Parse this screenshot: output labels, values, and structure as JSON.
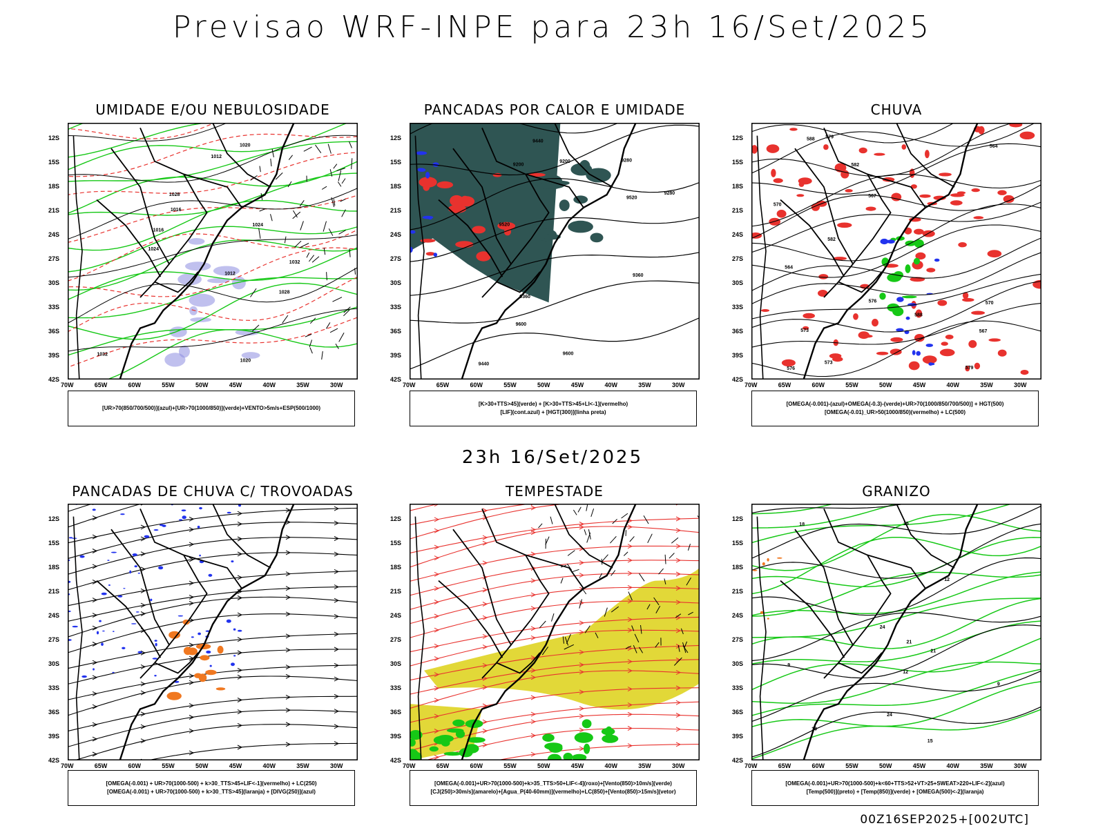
{
  "title": "Previsao WRF-INPE  para 23h 16/Set/2025",
  "middle_date": "23h 16/Set/2025",
  "footer": "00Z16SEP2025+[002UTC]",
  "lat_ticks": [
    "12S",
    "15S",
    "18S",
    "21S",
    "24S",
    "27S",
    "30S",
    "33S",
    "36S",
    "39S",
    "42S"
  ],
  "lon_ticks": [
    "70W",
    "65W",
    "60W",
    "55W",
    "50W",
    "45W",
    "40W",
    "35W",
    "30W"
  ],
  "panels": [
    {
      "title": "UMIDADE E/OU NEBULOSIDADE",
      "legend": [
        "[UR>70(850/700/500)](azul)+[UR>70(1000/850)](verde)+VENTO>5m/s+ESP(500/1000)"
      ],
      "contour_labels": [
        "1012",
        "1016",
        "1020",
        "1024",
        "1028",
        "1032"
      ]
    },
    {
      "title": "PANCADAS POR CALOR E UMIDADE",
      "legend": [
        "[K>30+TTS>45](verde) + [K>30+TTS>45+LI<-1](vermelho)",
        "[LIF](cont.azul) + [HGT(300)](linha preta)"
      ],
      "contour_labels": [
        "9600",
        "9520",
        "9440",
        "9360",
        "9280",
        "9200"
      ]
    },
    {
      "title": "CHUVA",
      "legend": [
        "[OMEGA(-0.001)-(azul)+OMEGA(-0.3)-(verde)+UR>70(1000/850/700/500)] + HGT(500)",
        "[OMEGA(-0.01)_UR>50(1000/850)(vermelho) + LC(500)"
      ],
      "contour_labels": [
        "588",
        "582",
        "579",
        "576",
        "573",
        "570",
        "567",
        "564"
      ]
    },
    {
      "title": "PANCADAS DE CHUVA C/ TROVOADAS",
      "legend": [
        "[OMEGA(-0.001) + UR>70(1000-500) + k>30_TTS>45+LIF<-1](vermelho) + LC(250)",
        "[OMEGA(-0.001) + UR>70(1000-500) + k>30_TTS>45](laranja) + [DIVG(250)](azul)"
      ],
      "contour_labels": []
    },
    {
      "title": "TEMPESTADE",
      "legend": [
        "[OMEGA(-0.001)+UR>70(1000-500)+k>35_TTS>50+LIF<-4](roxo)+[Vento(850)>10m/s](verde)",
        "[CJ(250)>30m/s](amarelo)+[Agua_P(40-60mm)](vermelho)+LC(850)+[Vento(850)>15m/s](vetor)"
      ],
      "contour_labels": []
    },
    {
      "title": "GRANIZO",
      "legend": [
        "[OMEGA(-0.001)+UR>70(1000-500)+k<60+TTS>52+VT>25+SWEAT>220+LIF<-2](azul)",
        "[Temp(500)](preto) + [Temp(850)](verde) + [OMEGA(500)<-2](laranja)"
      ],
      "contour_labels": [
        "12",
        "9",
        "15",
        "18",
        "21",
        "24"
      ]
    }
  ],
  "colors": {
    "black": "#000000",
    "red": "#e8322e",
    "green": "#16c816",
    "blue": "#2233ee",
    "teal": "#2f5553",
    "purple": "#8c8ce0",
    "orange": "#f07820",
    "yellow": "#e2d838"
  }
}
